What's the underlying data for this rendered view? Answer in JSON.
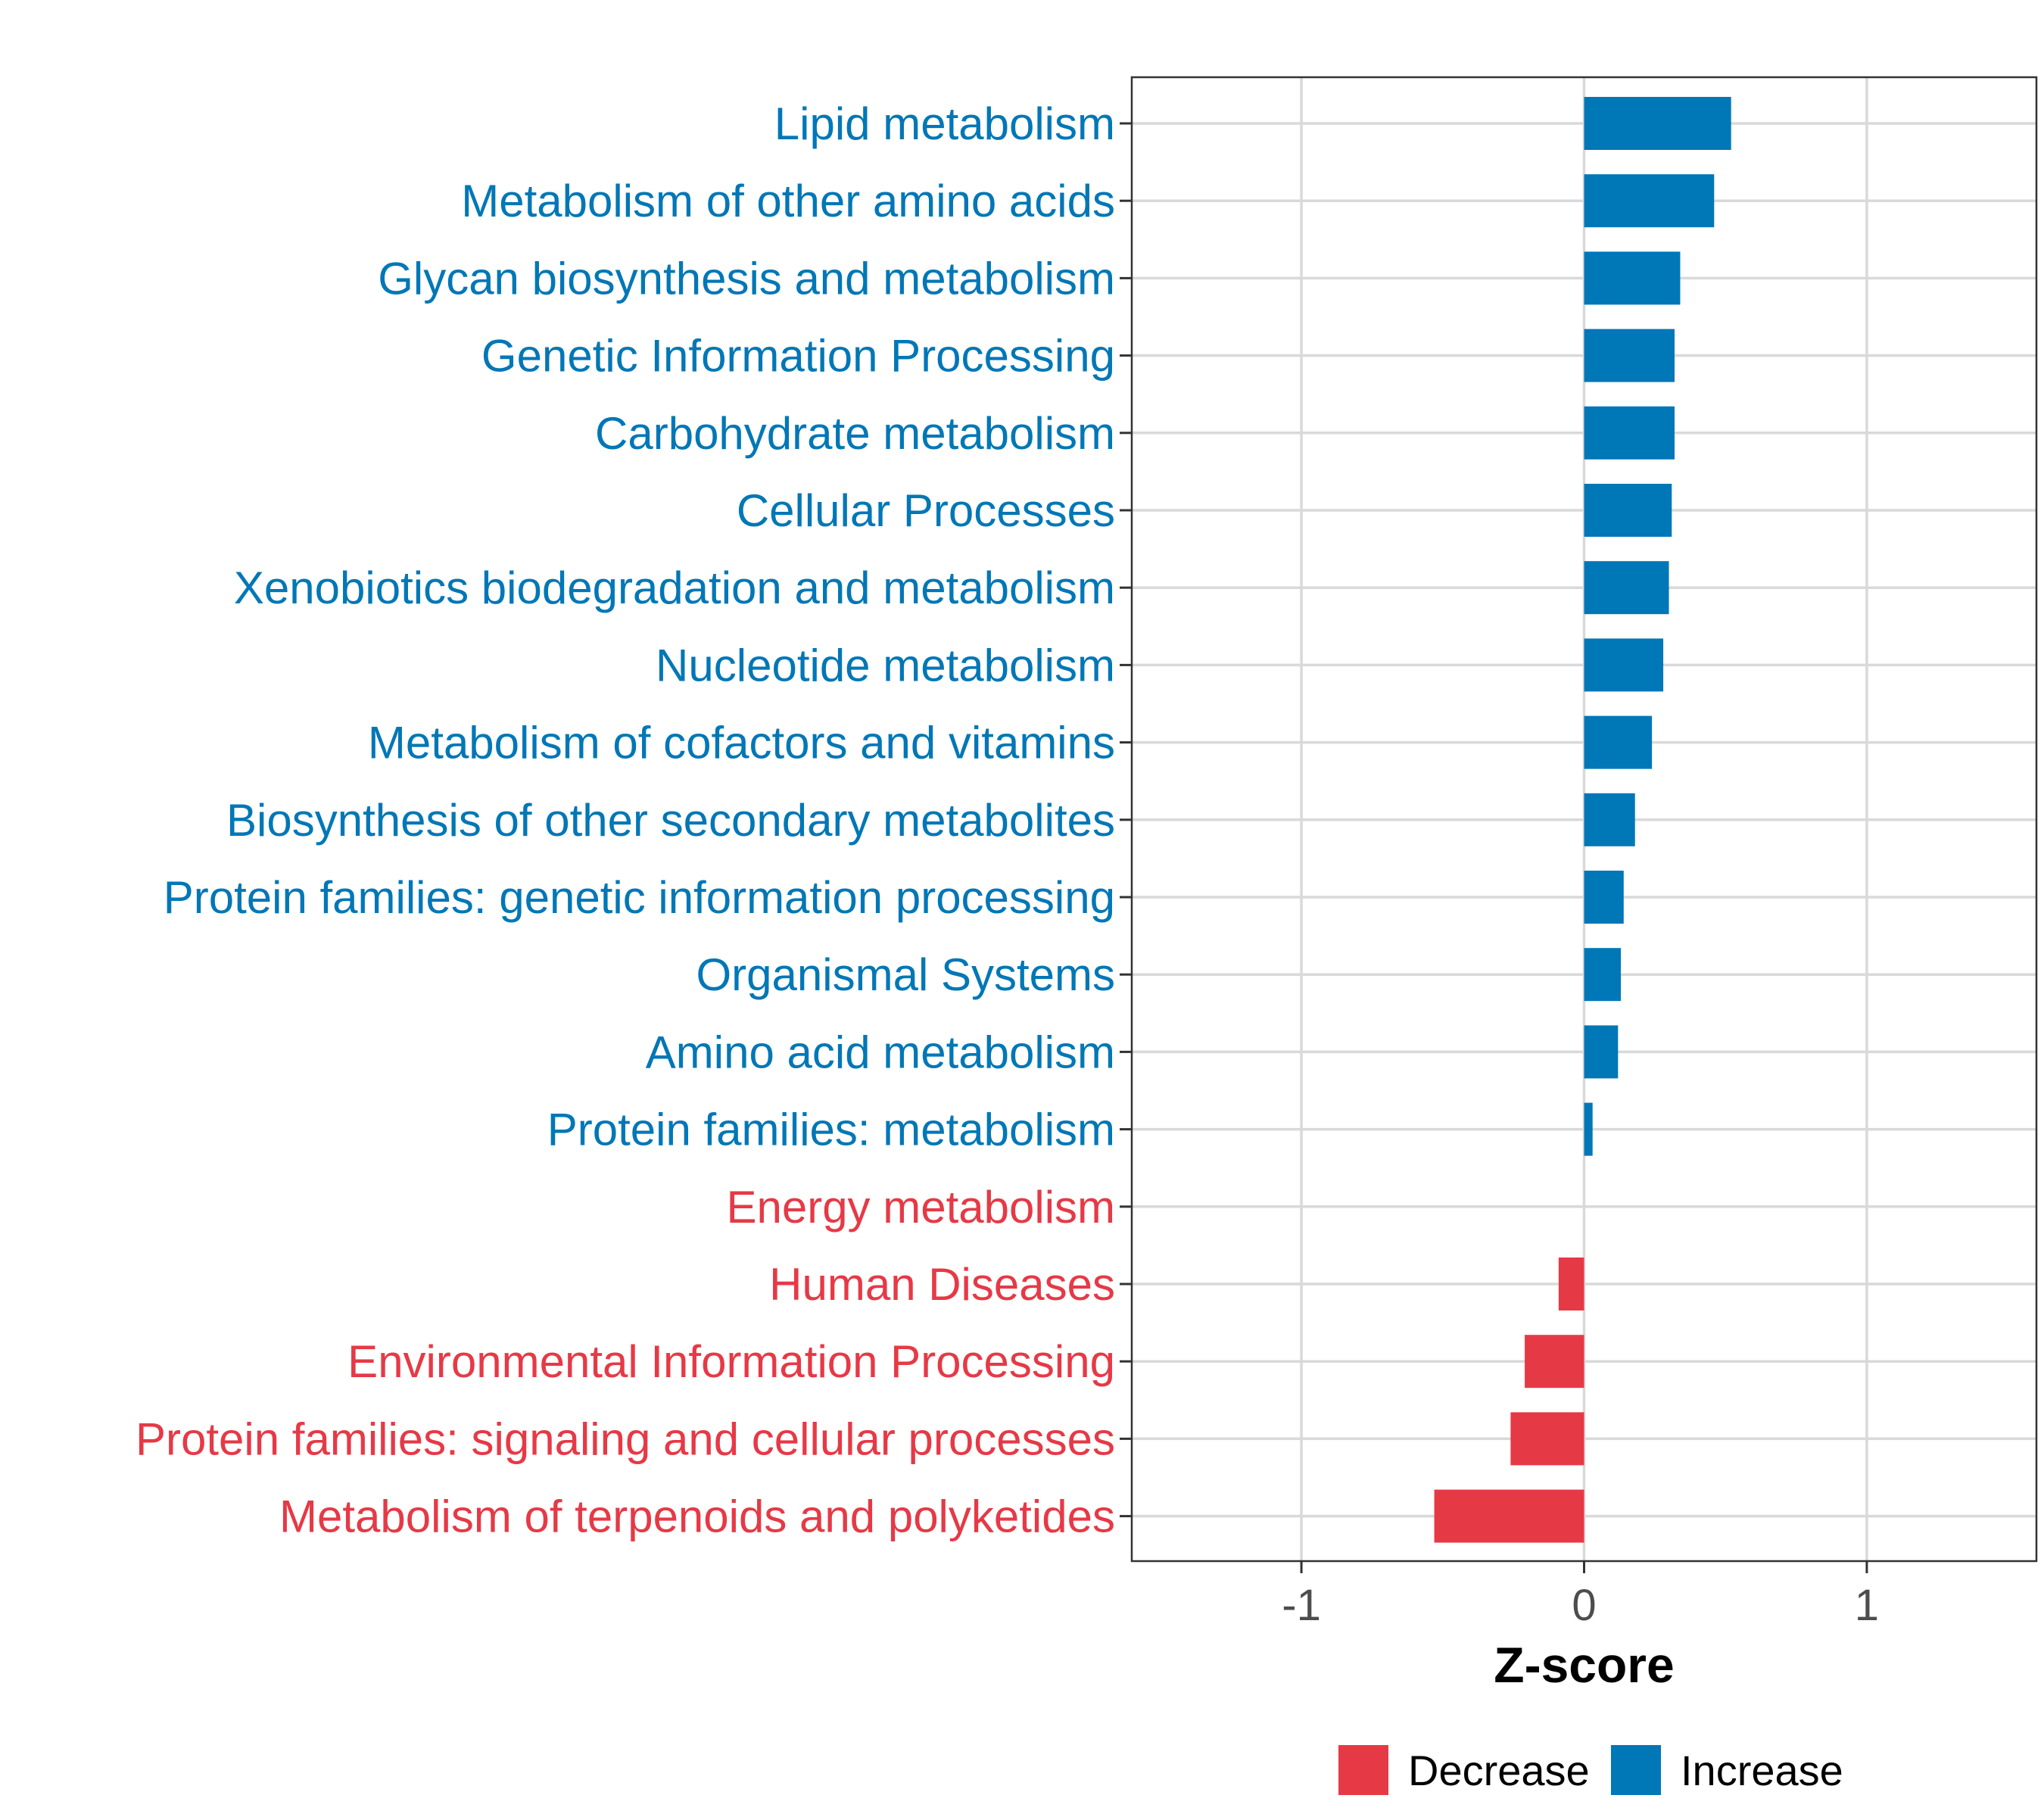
{
  "chart_data": {
    "type": "bar",
    "orientation": "horizontal",
    "title": "",
    "xlabel": "Z-score",
    "ylabel": "",
    "xlim": [
      -1.6,
      1.6
    ],
    "xticks": [
      -1,
      0,
      1
    ],
    "grid": true,
    "legend_position": "bottom",
    "legend": [
      {
        "label": "Decrease",
        "color": "#E63946"
      },
      {
        "label": "Increase",
        "color": "#0077B6"
      }
    ],
    "categories": [
      "Lipid metabolism",
      "Metabolism of other amino acids",
      "Glycan biosynthesis and metabolism",
      "Genetic Information Processing",
      "Carbohydrate metabolism",
      "Cellular Processes",
      "Xenobiotics biodegradation and metabolism",
      "Nucleotide metabolism",
      "Metabolism of cofactors and vitamins",
      "Biosynthesis of other secondary metabolites",
      "Protein families: genetic information processing",
      "Organismal Systems",
      "Amino acid metabolism",
      "Protein families: metabolism",
      "Energy metabolism",
      "Human Diseases",
      "Environmental Information Processing",
      "Protein families: signaling and cellular processes",
      "Metabolism of terpenoids and polyketides"
    ],
    "values": [
      0.52,
      0.46,
      0.34,
      0.32,
      0.32,
      0.31,
      0.3,
      0.28,
      0.24,
      0.18,
      0.14,
      0.13,
      0.12,
      0.03,
      0.0,
      -0.09,
      -0.21,
      -0.26,
      -0.53
    ],
    "direction": [
      "Increase",
      "Increase",
      "Increase",
      "Increase",
      "Increase",
      "Increase",
      "Increase",
      "Increase",
      "Increase",
      "Increase",
      "Increase",
      "Increase",
      "Increase",
      "Increase",
      "Decrease",
      "Decrease",
      "Decrease",
      "Decrease",
      "Decrease"
    ]
  }
}
